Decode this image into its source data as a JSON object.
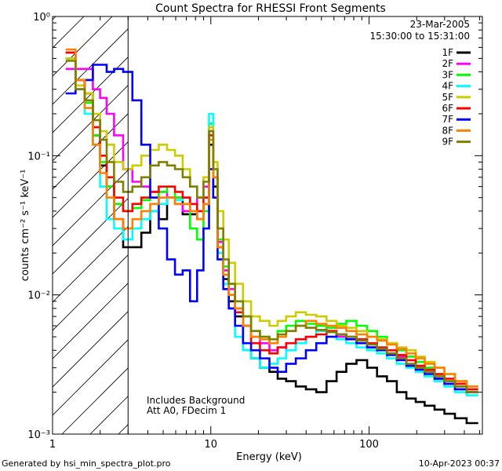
{
  "chart_data": {
    "type": "line",
    "title": "Count Spectra for RHESSI Front Segments",
    "xlabel": "Energy (keV)",
    "ylabel": "counts cm⁻² s⁻¹ keV⁻¹",
    "xscale": "log",
    "yscale": "log",
    "xlim": [
      1,
      520
    ],
    "ylim": [
      0.001,
      1
    ],
    "xticks": [
      {
        "value": 1,
        "label": "1"
      },
      {
        "value": 10,
        "label": "10"
      },
      {
        "value": 100,
        "label": "100"
      }
    ],
    "yticks": [
      {
        "value": 1,
        "label": "10⁰"
      },
      {
        "value": 0.1,
        "label": "10⁻¹"
      },
      {
        "value": 0.01,
        "label": "10⁻²"
      },
      {
        "value": 0.001,
        "label": "10⁻³"
      }
    ],
    "shaded_region": {
      "x_from": 1,
      "x_to": 3,
      "style": "diagonal hatch",
      "meaning": "excluded energies below attenuator threshold"
    },
    "date": "23-Mar-2005",
    "time_range": "15:30:00 to 15:31:00",
    "annotations": [
      "Includes Background",
      "Att A0, FDecim 1"
    ],
    "legend_position": "top-right",
    "series": [
      {
        "name": "1F",
        "color": "#000000",
        "x": [
          1.3,
          1.5,
          1.7,
          1.9,
          2.1,
          2.3,
          2.6,
          3.0,
          3.4,
          3.9,
          4.4,
          5.0,
          5.6,
          6.3,
          7.0,
          7.8,
          8.6,
          9.4,
          10.1,
          10.6,
          11.5,
          12.5,
          13.5,
          15,
          17,
          19,
          22,
          25,
          28,
          32,
          37,
          43,
          50,
          58,
          67,
          77,
          90,
          105,
          120,
          140,
          160,
          185,
          210,
          240,
          280,
          320,
          380,
          450
        ],
        "y": [
          0.55,
          0.35,
          0.28,
          0.14,
          0.085,
          0.06,
          0.035,
          0.022,
          0.022,
          0.028,
          0.04,
          0.035,
          0.05,
          0.05,
          0.038,
          0.038,
          0.035,
          0.045,
          0.12,
          0.06,
          0.022,
          0.013,
          0.009,
          0.007,
          0.004,
          0.0035,
          0.003,
          0.0028,
          0.0025,
          0.0024,
          0.0022,
          0.0021,
          0.002,
          0.0024,
          0.0028,
          0.0032,
          0.0034,
          0.003,
          0.0026,
          0.0024,
          0.002,
          0.0018,
          0.0017,
          0.0016,
          0.0015,
          0.0014,
          0.0013,
          0.0012
        ]
      },
      {
        "name": "2F",
        "color": "#ff00ff",
        "x": [
          1.3,
          1.5,
          1.7,
          1.9,
          2.1,
          2.3,
          2.6,
          3.0,
          3.4,
          3.9,
          4.4,
          5.0,
          5.6,
          6.3,
          7.0,
          7.8,
          8.6,
          9.4,
          10.1,
          10.6,
          11.5,
          12.5,
          13.5,
          15,
          17,
          19,
          22,
          25,
          28,
          32,
          37,
          43,
          50,
          58,
          67,
          77,
          90,
          105,
          120,
          140,
          160,
          185,
          210,
          240,
          280,
          320,
          380,
          450
        ],
        "y": [
          0.42,
          0.42,
          0.42,
          0.3,
          0.26,
          0.2,
          0.14,
          0.08,
          0.065,
          0.06,
          0.055,
          0.055,
          0.05,
          0.045,
          0.04,
          0.045,
          0.05,
          0.06,
          0.15,
          0.07,
          0.024,
          0.015,
          0.011,
          0.008,
          0.006,
          0.005,
          0.0045,
          0.004,
          0.0042,
          0.004,
          0.0045,
          0.005,
          0.006,
          0.0055,
          0.005,
          0.0048,
          0.0045,
          0.0042,
          0.004,
          0.0038,
          0.0036,
          0.0034,
          0.003,
          0.0028,
          0.0025,
          0.0023,
          0.0021,
          0.002
        ]
      },
      {
        "name": "3F",
        "color": "#00ff00",
        "x": [
          1.3,
          1.5,
          1.7,
          1.9,
          2.1,
          2.3,
          2.6,
          3.0,
          3.4,
          3.9,
          4.4,
          5.0,
          5.6,
          6.3,
          7.0,
          7.8,
          8.6,
          9.4,
          10.1,
          10.6,
          11.5,
          12.5,
          13.5,
          15,
          17,
          19,
          22,
          25,
          28,
          32,
          37,
          43,
          50,
          58,
          67,
          77,
          90,
          105,
          120,
          140,
          160,
          185,
          210,
          240,
          280,
          320,
          380,
          450
        ],
        "y": [
          0.5,
          0.32,
          0.24,
          0.14,
          0.09,
          0.06,
          0.045,
          0.04,
          0.042,
          0.048,
          0.05,
          0.055,
          0.06,
          0.05,
          0.05,
          0.03,
          0.025,
          0.04,
          0.17,
          0.08,
          0.025,
          0.016,
          0.012,
          0.009,
          0.007,
          0.0055,
          0.005,
          0.0045,
          0.0055,
          0.006,
          0.0065,
          0.0062,
          0.006,
          0.0058,
          0.0062,
          0.0065,
          0.006,
          0.0055,
          0.005,
          0.0045,
          0.004,
          0.0036,
          0.0033,
          0.003,
          0.0027,
          0.0024,
          0.0022,
          0.002
        ]
      },
      {
        "name": "4F",
        "color": "#00ffff",
        "x": [
          1.3,
          1.5,
          1.7,
          1.9,
          2.1,
          2.3,
          2.6,
          3.0,
          3.4,
          3.9,
          4.4,
          5.0,
          5.6,
          6.3,
          7.0,
          7.8,
          8.6,
          9.4,
          10.1,
          10.6,
          11.5,
          12.5,
          13.5,
          15,
          17,
          19,
          22,
          25,
          28,
          32,
          37,
          43,
          50,
          58,
          67,
          77,
          90,
          105,
          120,
          140,
          160,
          185,
          210,
          240,
          280,
          320,
          380,
          450
        ],
        "y": [
          0.5,
          0.3,
          0.2,
          0.12,
          0.06,
          0.035,
          0.03,
          0.025,
          0.03,
          0.035,
          0.04,
          0.045,
          0.05,
          0.048,
          0.05,
          0.04,
          0.035,
          0.045,
          0.2,
          0.07,
          0.02,
          0.012,
          0.008,
          0.005,
          0.004,
          0.0035,
          0.003,
          0.0032,
          0.0035,
          0.004,
          0.0045,
          0.005,
          0.0055,
          0.005,
          0.0048,
          0.0045,
          0.0042,
          0.004,
          0.0038,
          0.0035,
          0.0032,
          0.003,
          0.0028,
          0.0026,
          0.0024,
          0.0022,
          0.002,
          0.0019
        ]
      },
      {
        "name": "5F",
        "color": "#cccc00",
        "x": [
          1.3,
          1.5,
          1.7,
          1.9,
          2.1,
          2.3,
          2.6,
          3.0,
          3.4,
          3.9,
          4.4,
          5.0,
          5.6,
          6.3,
          7.0,
          7.8,
          8.6,
          9.4,
          10.1,
          10.6,
          11.5,
          12.5,
          13.5,
          15,
          17,
          19,
          22,
          25,
          28,
          32,
          37,
          43,
          50,
          58,
          67,
          77,
          90,
          105,
          120,
          140,
          160,
          185,
          210,
          240,
          280,
          320,
          380,
          450
        ],
        "y": [
          0.5,
          0.32,
          0.28,
          0.2,
          0.15,
          0.12,
          0.09,
          0.08,
          0.085,
          0.1,
          0.11,
          0.12,
          0.11,
          0.1,
          0.08,
          0.06,
          0.05,
          0.07,
          0.16,
          0.09,
          0.04,
          0.025,
          0.017,
          0.012,
          0.009,
          0.007,
          0.0065,
          0.006,
          0.0065,
          0.007,
          0.0075,
          0.0072,
          0.007,
          0.0065,
          0.006,
          0.0058,
          0.0055,
          0.005,
          0.0048,
          0.0045,
          0.0042,
          0.004,
          0.0036,
          0.0033,
          0.003,
          0.0027,
          0.0024,
          0.0022
        ]
      },
      {
        "name": "6F",
        "color": "#ff0000",
        "x": [
          1.3,
          1.5,
          1.7,
          1.9,
          2.1,
          2.3,
          2.6,
          3.0,
          3.4,
          3.9,
          4.4,
          5.0,
          5.6,
          6.3,
          7.0,
          7.8,
          8.6,
          9.4,
          10.1,
          10.6,
          11.5,
          12.5,
          13.5,
          15,
          17,
          19,
          22,
          25,
          28,
          32,
          37,
          43,
          50,
          58,
          67,
          77,
          90,
          105,
          120,
          140,
          160,
          185,
          210,
          240,
          280,
          320,
          380,
          450
        ],
        "y": [
          0.55,
          0.35,
          0.25,
          0.16,
          0.1,
          0.07,
          0.05,
          0.04,
          0.045,
          0.05,
          0.055,
          0.06,
          0.06,
          0.055,
          0.05,
          0.045,
          0.04,
          0.05,
          0.14,
          0.07,
          0.022,
          0.014,
          0.01,
          0.0075,
          0.006,
          0.0045,
          0.004,
          0.0038,
          0.0042,
          0.0045,
          0.0048,
          0.005,
          0.0052,
          0.0055,
          0.0052,
          0.005,
          0.0048,
          0.0045,
          0.0042,
          0.004,
          0.0037,
          0.0034,
          0.0031,
          0.0029,
          0.0027,
          0.0025,
          0.0023,
          0.0021
        ]
      },
      {
        "name": "7F",
        "color": "#0000ff",
        "x": [
          1.3,
          1.5,
          1.7,
          1.9,
          2.1,
          2.3,
          2.6,
          3.0,
          3.4,
          3.9,
          4.4,
          5.0,
          5.6,
          6.3,
          7.0,
          7.8,
          8.6,
          9.4,
          10.1,
          10.6,
          11.5,
          12.5,
          13.5,
          15,
          17,
          19,
          22,
          25,
          28,
          32,
          37,
          43,
          50,
          58,
          67,
          77,
          90,
          105,
          120,
          140,
          160,
          185,
          210,
          240,
          280,
          320,
          380,
          450
        ],
        "y": [
          0.28,
          0.3,
          0.35,
          0.45,
          0.45,
          0.4,
          0.42,
          0.4,
          0.25,
          0.12,
          0.05,
          0.03,
          0.018,
          0.014,
          0.015,
          0.009,
          0.015,
          0.03,
          0.08,
          0.05,
          0.018,
          0.011,
          0.008,
          0.006,
          0.0045,
          0.004,
          0.0035,
          0.003,
          0.0028,
          0.0032,
          0.0035,
          0.004,
          0.0045,
          0.005,
          0.0052,
          0.0048,
          0.0045,
          0.0042,
          0.004,
          0.0037,
          0.0034,
          0.0031,
          0.0029,
          0.0027,
          0.0025,
          0.0023,
          0.0021,
          0.002
        ]
      },
      {
        "name": "8F",
        "color": "#ff8000",
        "x": [
          1.3,
          1.5,
          1.7,
          1.9,
          2.1,
          2.3,
          2.6,
          3.0,
          3.4,
          3.9,
          4.4,
          5.0,
          5.6,
          6.3,
          7.0,
          7.8,
          8.6,
          9.4,
          10.1,
          10.6,
          11.5,
          12.5,
          13.5,
          15,
          17,
          19,
          22,
          25,
          28,
          32,
          37,
          43,
          50,
          58,
          67,
          77,
          90,
          105,
          120,
          140,
          160,
          185,
          210,
          240,
          280,
          320,
          380,
          450
        ],
        "y": [
          0.58,
          0.35,
          0.22,
          0.12,
          0.075,
          0.05,
          0.035,
          0.03,
          0.035,
          0.04,
          0.045,
          0.05,
          0.05,
          0.045,
          0.045,
          0.04,
          0.035,
          0.045,
          0.13,
          0.07,
          0.022,
          0.014,
          0.01,
          0.008,
          0.006,
          0.005,
          0.0048,
          0.0045,
          0.005,
          0.0055,
          0.006,
          0.0065,
          0.0062,
          0.006,
          0.0058,
          0.0055,
          0.0052,
          0.005,
          0.0047,
          0.0044,
          0.0041,
          0.0038,
          0.0035,
          0.0032,
          0.003,
          0.0027,
          0.0024,
          0.0022
        ]
      },
      {
        "name": "9F",
        "color": "#808000",
        "x": [
          1.3,
          1.5,
          1.7,
          1.9,
          2.1,
          2.3,
          2.6,
          3.0,
          3.4,
          3.9,
          4.4,
          5.0,
          5.6,
          6.3,
          7.0,
          7.8,
          8.6,
          9.4,
          10.1,
          10.6,
          11.5,
          12.5,
          13.5,
          15,
          17,
          19,
          22,
          25,
          28,
          32,
          37,
          43,
          50,
          58,
          67,
          77,
          90,
          105,
          120,
          140,
          160,
          185,
          210,
          240,
          280,
          320,
          380,
          450
        ],
        "y": [
          0.48,
          0.3,
          0.25,
          0.18,
          0.13,
          0.09,
          0.065,
          0.055,
          0.06,
          0.07,
          0.085,
          0.09,
          0.085,
          0.08,
          0.07,
          0.06,
          0.05,
          0.065,
          0.15,
          0.08,
          0.03,
          0.018,
          0.012,
          0.009,
          0.007,
          0.0055,
          0.005,
          0.0048,
          0.0052,
          0.0055,
          0.006,
          0.0058,
          0.0056,
          0.0054,
          0.0052,
          0.005,
          0.0047,
          0.0044,
          0.0041,
          0.0038,
          0.0035,
          0.0032,
          0.003,
          0.0028,
          0.0026,
          0.0024,
          0.0022,
          0.002
        ]
      }
    ]
  },
  "footer": {
    "generated_by": "Generated by hsi_min_spectra_plot.pro",
    "timestamp": "10-Apr-2023 00:37"
  }
}
